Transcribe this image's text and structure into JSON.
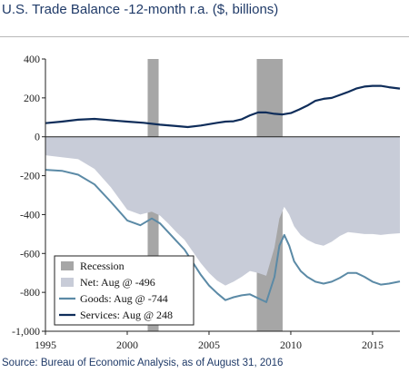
{
  "header": {
    "title": "U.S. Trade Balance -12-month r.a. ($, billions)"
  },
  "footer": {
    "source": "Source: Bureau of Economic Analysis, as of August 31, 2016"
  },
  "chart_data": {
    "type": "area",
    "title": "U.S. Trade Balance -12-month r.a. ($, billions)",
    "xlabel": "",
    "ylabel": "",
    "xlim": [
      1995.0,
      2016.67
    ],
    "ylim": [
      -1000,
      400
    ],
    "x_ticks": [
      "1995",
      "2000",
      "2005",
      "2010",
      "2015"
    ],
    "y_ticks": [
      "400",
      "200",
      "0",
      "-200",
      "-400",
      "-600",
      "-800",
      "-1,000"
    ],
    "y_tick_values": [
      400,
      200,
      0,
      -200,
      -400,
      -600,
      -800,
      -1000
    ],
    "x_tick_values": [
      1995,
      2000,
      2005,
      2010,
      2015
    ],
    "grid": false,
    "legend_position": "bottom-left",
    "colors": {
      "recession": "#a6a6a6",
      "net": "#c8ccd8",
      "goods": "#5b8aa6",
      "services": "#0f2d5a",
      "axis": "#222222"
    },
    "recessions": [
      {
        "start": 2001.25,
        "end": 2001.92
      },
      {
        "start": 2007.92,
        "end": 2009.5
      }
    ],
    "series": [
      {
        "name": "Net: Aug @ -496",
        "type": "area",
        "x": [
          1995.0,
          1996.0,
          1997.0,
          1998.0,
          1999.0,
          2000.0,
          2000.8,
          2001.5,
          2002.0,
          2002.5,
          2003.0,
          2003.5,
          2004.0,
          2004.5,
          2005.0,
          2005.5,
          2006.0,
          2006.5,
          2007.0,
          2007.5,
          2008.0,
          2008.5,
          2009.0,
          2009.3,
          2009.6,
          2009.9,
          2010.2,
          2010.6,
          2011.0,
          2011.5,
          2012.0,
          2012.5,
          2013.0,
          2013.5,
          2014.0,
          2014.5,
          2015.0,
          2015.5,
          2016.0,
          2016.67
        ],
        "y": [
          -95,
          -105,
          -115,
          -165,
          -260,
          -375,
          -400,
          -385,
          -405,
          -445,
          -490,
          -530,
          -590,
          -650,
          -700,
          -740,
          -765,
          -745,
          -720,
          -690,
          -700,
          -715,
          -570,
          -420,
          -360,
          -400,
          -460,
          -505,
          -530,
          -550,
          -560,
          -540,
          -510,
          -490,
          -495,
          -500,
          -500,
          -505,
          -500,
          -496
        ]
      },
      {
        "name": "Goods: Aug @ -744",
        "type": "line",
        "x": [
          1995.0,
          1996.0,
          1997.0,
          1998.0,
          1999.0,
          2000.0,
          2000.8,
          2001.5,
          2002.0,
          2002.5,
          2003.0,
          2003.5,
          2004.0,
          2004.5,
          2005.0,
          2005.5,
          2006.0,
          2006.5,
          2007.0,
          2007.5,
          2008.0,
          2008.5,
          2009.0,
          2009.3,
          2009.6,
          2009.9,
          2010.2,
          2010.6,
          2011.0,
          2011.5,
          2012.0,
          2012.5,
          2013.0,
          2013.5,
          2014.0,
          2014.5,
          2015.0,
          2015.5,
          2016.0,
          2016.67
        ],
        "y": [
          -170,
          -175,
          -195,
          -245,
          -335,
          -430,
          -455,
          -420,
          -445,
          -490,
          -535,
          -580,
          -645,
          -710,
          -765,
          -805,
          -840,
          -825,
          -815,
          -810,
          -830,
          -850,
          -720,
          -560,
          -505,
          -560,
          -640,
          -690,
          -720,
          -745,
          -755,
          -745,
          -725,
          -700,
          -700,
          -720,
          -745,
          -760,
          -755,
          -744
        ]
      },
      {
        "name": "Services: Aug @ 248",
        "type": "line",
        "x": [
          1995.0,
          1996.0,
          1997.0,
          1998.0,
          1999.0,
          2000.0,
          2001.0,
          2002.0,
          2003.0,
          2003.7,
          2004.5,
          2005.0,
          2005.5,
          2006.0,
          2006.5,
          2007.0,
          2007.5,
          2008.0,
          2008.5,
          2009.0,
          2009.5,
          2010.0,
          2010.5,
          2011.0,
          2011.5,
          2012.0,
          2012.5,
          2013.0,
          2013.5,
          2014.0,
          2014.5,
          2015.0,
          2015.5,
          2016.0,
          2016.67
        ],
        "y": [
          70,
          78,
          88,
          92,
          85,
          78,
          72,
          62,
          55,
          50,
          58,
          65,
          72,
          78,
          80,
          90,
          110,
          125,
          125,
          118,
          115,
          122,
          140,
          160,
          185,
          195,
          200,
          215,
          230,
          248,
          258,
          262,
          262,
          255,
          248
        ]
      }
    ],
    "legend": [
      {
        "key": "recession",
        "label": "Recession"
      },
      {
        "key": "net",
        "label": "Net: Aug @ -496"
      },
      {
        "key": "goods",
        "label": "Goods: Aug @ -744"
      },
      {
        "key": "services",
        "label": "Services: Aug @ 248"
      }
    ]
  }
}
